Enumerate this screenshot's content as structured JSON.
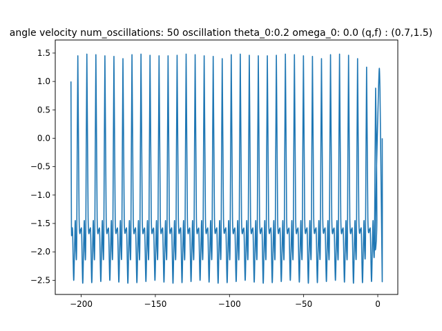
{
  "chart_data": {
    "type": "line",
    "title": "angle velocity num_oscillations: 50 oscillation theta_0:0.2 omega_0: 0.0 (q,f) : (0.7,1.5)",
    "xlabel": "",
    "ylabel": "",
    "xlim": [
      -217.5,
      13.5
    ],
    "ylim": [
      -2.75,
      1.73
    ],
    "grid": false,
    "legend": "none",
    "xticks": [
      -200,
      -150,
      -100,
      -50,
      0
    ],
    "xtick_labels": [
      "−200",
      "−150",
      "−100",
      "−50",
      "0"
    ],
    "yticks": [
      1.5,
      1.0,
      0.5,
      0.0,
      -0.5,
      -1.0,
      -1.5,
      -2.0,
      -2.5
    ],
    "ytick_labels": [
      "1.5",
      "1.0",
      "0.5",
      "0.0",
      "−0.5",
      "−1.0",
      "−1.5",
      "−2.0",
      "−2.5"
    ],
    "series": [
      {
        "color": "#1f77b4",
        "x_start": -206.9,
        "x_end": 0,
        "tail_x": 3.0,
        "num_cycles": 34,
        "peak_values": [
          1.45,
          1.48,
          1.47,
          1.45,
          1.44,
          1.4,
          1.47,
          1.48,
          1.46,
          1.45,
          1.45,
          1.46,
          1.48,
          1.47,
          1.45,
          1.44,
          1.4,
          1.47,
          1.48,
          1.46,
          1.45,
          1.45,
          1.46,
          1.48,
          1.47,
          1.45,
          1.44,
          1.4,
          1.47,
          1.48,
          1.46,
          1.4,
          1.25,
          0.88
        ],
        "min_values": [
          -2.5,
          -2.55,
          -2.54,
          -2.52,
          -2.5,
          -2.53,
          -2.55,
          -2.54,
          -2.52,
          -2.5,
          -2.53,
          -2.55,
          -2.54,
          -2.52,
          -2.5,
          -2.53,
          -2.55,
          -2.54,
          -2.52,
          -2.5,
          -2.53,
          -2.55,
          -2.54,
          -2.52,
          -2.5,
          -2.53,
          -2.55,
          -2.54,
          -2.52,
          -2.5,
          -2.53,
          -2.55,
          -2.54,
          -2.52
        ],
        "shoulder_value": -1.6,
        "bump_value": -1.45,
        "start_value": 1.0,
        "end_value": 0.0
      }
    ]
  }
}
